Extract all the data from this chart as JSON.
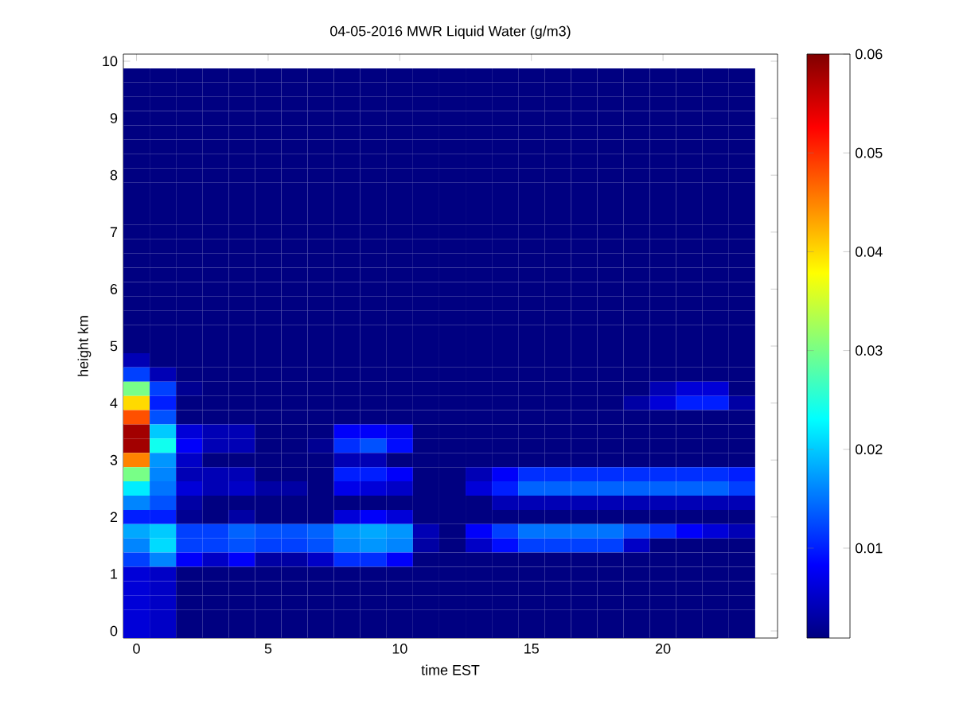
{
  "chart_data": {
    "type": "heatmap",
    "title": "04-05-2016 MWR Liquid Water (g/m3)",
    "xlabel": "time EST",
    "ylabel": "height km",
    "categories": [
      "0",
      null,
      null,
      null,
      null,
      "5",
      null,
      null,
      null,
      null,
      "10",
      null,
      null,
      null,
      null,
      "15",
      null,
      null,
      null,
      null,
      "20",
      null,
      null,
      null
    ],
    "y_categories": [
      "10",
      null,
      null,
      null,
      "9",
      null,
      null,
      null,
      "8",
      null,
      null,
      null,
      "7",
      null,
      null,
      null,
      "6",
      null,
      null,
      null,
      "5",
      null,
      null,
      null,
      "4",
      null,
      null,
      null,
      "3",
      null,
      null,
      null,
      "2",
      null,
      null,
      null,
      "1",
      null,
      null,
      null,
      "0"
    ],
    "clim": [
      0.0009,
      0.06
    ],
    "cticks": [
      0.01,
      0.02,
      0.03,
      0.04,
      0.05,
      0.06
    ],
    "cells": [
      [
        null,
        null,
        null,
        null,
        null,
        null,
        null,
        null,
        null,
        null,
        null,
        null,
        null,
        null,
        null,
        null,
        null,
        null,
        null,
        null,
        null,
        null,
        null,
        null
      ],
      [
        0.001,
        0.001,
        0.001,
        0.001,
        0.001,
        0.001,
        0.001,
        0.001,
        0.001,
        0.001,
        0.001,
        0.001,
        0.001,
        0.001,
        0.001,
        0.001,
        0.001,
        0.001,
        0.001,
        0.001,
        0.001,
        0.001,
        0.001,
        0.001
      ],
      [
        0.001,
        0.001,
        0.001,
        0.001,
        0.001,
        0.001,
        0.001,
        0.001,
        0.001,
        0.001,
        0.001,
        0.001,
        0.001,
        0.001,
        0.001,
        0.001,
        0.001,
        0.001,
        0.001,
        0.001,
        0.001,
        0.001,
        0.001,
        0.001
      ],
      [
        0.001,
        0.001,
        0.001,
        0.001,
        0.001,
        0.001,
        0.001,
        0.001,
        0.001,
        0.001,
        0.001,
        0.001,
        0.001,
        0.001,
        0.001,
        0.001,
        0.001,
        0.001,
        0.001,
        0.001,
        0.001,
        0.001,
        0.001,
        0.001
      ],
      [
        0.001,
        0.001,
        0.001,
        0.001,
        0.001,
        0.001,
        0.001,
        0.001,
        0.001,
        0.001,
        0.001,
        0.001,
        0.001,
        0.001,
        0.001,
        0.001,
        0.001,
        0.001,
        0.001,
        0.001,
        0.001,
        0.001,
        0.001,
        0.001
      ],
      [
        0.001,
        0.001,
        0.001,
        0.001,
        0.001,
        0.001,
        0.001,
        0.001,
        0.001,
        0.001,
        0.001,
        0.001,
        0.001,
        0.001,
        0.001,
        0.001,
        0.001,
        0.001,
        0.001,
        0.001,
        0.001,
        0.001,
        0.001,
        0.001
      ],
      [
        0.001,
        0.001,
        0.001,
        0.001,
        0.001,
        0.001,
        0.001,
        0.001,
        0.001,
        0.001,
        0.001,
        0.001,
        0.001,
        0.001,
        0.001,
        0.001,
        0.001,
        0.001,
        0.001,
        0.001,
        0.001,
        0.001,
        0.001,
        0.001
      ],
      [
        0.001,
        0.001,
        0.001,
        0.001,
        0.001,
        0.001,
        0.001,
        0.001,
        0.001,
        0.001,
        0.001,
        0.001,
        0.001,
        0.001,
        0.001,
        0.001,
        0.001,
        0.001,
        0.001,
        0.001,
        0.001,
        0.001,
        0.001,
        0.001
      ],
      [
        0.001,
        0.001,
        0.001,
        0.001,
        0.001,
        0.001,
        0.001,
        0.001,
        0.001,
        0.001,
        0.001,
        0.001,
        0.001,
        0.001,
        0.001,
        0.001,
        0.001,
        0.001,
        0.001,
        0.001,
        0.001,
        0.001,
        0.001,
        0.001
      ],
      [
        0.001,
        0.001,
        0.001,
        0.001,
        0.001,
        0.001,
        0.001,
        0.001,
        0.001,
        0.001,
        0.001,
        0.001,
        0.001,
        0.001,
        0.001,
        0.001,
        0.001,
        0.001,
        0.001,
        0.001,
        0.001,
        0.001,
        0.001,
        0.001
      ],
      [
        0.001,
        0.001,
        0.001,
        0.001,
        0.001,
        0.001,
        0.001,
        0.001,
        0.001,
        0.001,
        0.001,
        0.001,
        0.001,
        0.001,
        0.001,
        0.001,
        0.001,
        0.001,
        0.001,
        0.001,
        0.001,
        0.001,
        0.001,
        0.001
      ],
      [
        0.001,
        0.001,
        0.001,
        0.001,
        0.001,
        0.001,
        0.001,
        0.001,
        0.001,
        0.001,
        0.001,
        0.001,
        0.001,
        0.001,
        0.001,
        0.001,
        0.001,
        0.001,
        0.001,
        0.001,
        0.001,
        0.001,
        0.001,
        0.001
      ],
      [
        0.001,
        0.001,
        0.001,
        0.001,
        0.001,
        0.001,
        0.001,
        0.001,
        0.001,
        0.001,
        0.001,
        0.001,
        0.001,
        0.001,
        0.001,
        0.001,
        0.001,
        0.001,
        0.001,
        0.001,
        0.001,
        0.001,
        0.001,
        0.001
      ],
      [
        0.001,
        0.001,
        0.001,
        0.001,
        0.001,
        0.001,
        0.001,
        0.001,
        0.001,
        0.001,
        0.001,
        0.001,
        0.001,
        0.001,
        0.001,
        0.001,
        0.001,
        0.001,
        0.001,
        0.001,
        0.001,
        0.001,
        0.001,
        0.001
      ],
      [
        0.001,
        0.001,
        0.001,
        0.001,
        0.001,
        0.001,
        0.001,
        0.001,
        0.001,
        0.001,
        0.001,
        0.001,
        0.001,
        0.001,
        0.001,
        0.001,
        0.001,
        0.001,
        0.001,
        0.001,
        0.001,
        0.001,
        0.001,
        0.001
      ],
      [
        0.001,
        0.001,
        0.001,
        0.001,
        0.001,
        0.001,
        0.001,
        0.001,
        0.001,
        0.001,
        0.001,
        0.001,
        0.001,
        0.001,
        0.001,
        0.001,
        0.001,
        0.001,
        0.001,
        0.001,
        0.001,
        0.001,
        0.001,
        0.001
      ],
      [
        0.001,
        0.001,
        0.001,
        0.001,
        0.001,
        0.001,
        0.001,
        0.001,
        0.001,
        0.001,
        0.001,
        0.001,
        0.001,
        0.001,
        0.001,
        0.001,
        0.001,
        0.001,
        0.001,
        0.001,
        0.001,
        0.001,
        0.001,
        0.001
      ],
      [
        0.001,
        0.001,
        0.001,
        0.001,
        0.001,
        0.001,
        0.001,
        0.001,
        0.001,
        0.001,
        0.001,
        0.001,
        0.001,
        0.001,
        0.001,
        0.001,
        0.001,
        0.001,
        0.001,
        0.001,
        0.001,
        0.001,
        0.001,
        0.001
      ],
      [
        0.001,
        0.001,
        0.001,
        0.001,
        0.001,
        0.001,
        0.001,
        0.001,
        0.001,
        0.001,
        0.001,
        0.001,
        0.001,
        0.001,
        0.001,
        0.001,
        0.001,
        0.001,
        0.001,
        0.001,
        0.001,
        0.001,
        0.001,
        0.001
      ],
      [
        0.001,
        0.001,
        0.001,
        0.001,
        0.001,
        0.001,
        0.001,
        0.001,
        0.001,
        0.001,
        0.001,
        0.001,
        0.001,
        0.001,
        0.001,
        0.001,
        0.001,
        0.001,
        0.001,
        0.001,
        0.001,
        0.001,
        0.001,
        0.001
      ],
      [
        0.001,
        0.001,
        0.001,
        0.001,
        0.001,
        0.001,
        0.001,
        0.001,
        0.001,
        0.001,
        0.001,
        0.001,
        0.001,
        0.001,
        0.001,
        0.001,
        0.001,
        0.001,
        0.001,
        0.001,
        0.001,
        0.001,
        0.001,
        0.001
      ],
      [
        0.004,
        0.001,
        0.001,
        0.001,
        0.001,
        0.001,
        0.001,
        0.001,
        0.001,
        0.001,
        0.001,
        0.001,
        0.001,
        0.001,
        0.001,
        0.001,
        0.001,
        0.001,
        0.001,
        0.001,
        0.001,
        0.001,
        0.001,
        0.001
      ],
      [
        0.012,
        0.004,
        0.001,
        0.001,
        0.001,
        0.001,
        0.001,
        0.001,
        0.001,
        0.001,
        0.001,
        0.001,
        0.001,
        0.001,
        0.001,
        0.001,
        0.001,
        0.001,
        0.001,
        0.001,
        0.001,
        0.001,
        0.001,
        0.001
      ],
      [
        0.03,
        0.012,
        0.002,
        0.001,
        0.001,
        0.001,
        0.001,
        0.001,
        0.001,
        0.001,
        0.001,
        0.001,
        0.001,
        0.001,
        0.001,
        0.001,
        0.001,
        0.001,
        0.001,
        0.001,
        0.004,
        0.006,
        0.006,
        0.001
      ],
      [
        0.04,
        0.01,
        0.001,
        0.001,
        0.001,
        0.001,
        0.001,
        0.001,
        0.001,
        0.001,
        0.001,
        0.001,
        0.001,
        0.001,
        0.001,
        0.001,
        0.001,
        0.001,
        0.001,
        0.003,
        0.006,
        0.01,
        0.01,
        0.003
      ],
      [
        0.048,
        0.013,
        0.001,
        0.001,
        0.001,
        0.001,
        0.001,
        0.001,
        0.001,
        0.001,
        0.001,
        0.001,
        0.001,
        0.001,
        0.001,
        0.001,
        0.001,
        0.001,
        0.001,
        0.001,
        0.001,
        0.001,
        0.001,
        0.001
      ],
      [
        0.058,
        0.02,
        0.006,
        0.004,
        0.004,
        0.001,
        0.001,
        0.001,
        0.008,
        0.008,
        0.007,
        0.001,
        0.001,
        0.001,
        0.001,
        0.001,
        0.001,
        0.001,
        0.001,
        0.001,
        0.001,
        0.001,
        0.001,
        0.001
      ],
      [
        0.058,
        0.024,
        0.008,
        0.004,
        0.004,
        0.001,
        0.001,
        0.002,
        0.011,
        0.013,
        0.009,
        0.001,
        0.001,
        0.001,
        0.001,
        0.001,
        0.001,
        0.001,
        0.001,
        0.001,
        0.001,
        0.001,
        0.001,
        0.001
      ],
      [
        0.045,
        0.017,
        0.005,
        0.001,
        0.001,
        0.001,
        0.001,
        0.001,
        0.004,
        0.004,
        0.001,
        0.001,
        0.001,
        0.001,
        0.001,
        0.001,
        0.001,
        0.001,
        0.001,
        0.001,
        0.001,
        0.001,
        0.001,
        0.001
      ],
      [
        0.03,
        0.016,
        0.004,
        0.004,
        0.004,
        0.001,
        0.001,
        0.001,
        0.01,
        0.01,
        0.008,
        0.001,
        0.001,
        0.004,
        0.008,
        0.011,
        0.011,
        0.011,
        0.011,
        0.011,
        0.011,
        0.011,
        0.011,
        0.01
      ],
      [
        0.022,
        0.015,
        0.006,
        0.004,
        0.005,
        0.003,
        0.003,
        0.001,
        0.007,
        0.006,
        0.005,
        0.001,
        0.001,
        0.006,
        0.01,
        0.014,
        0.014,
        0.014,
        0.014,
        0.014,
        0.014,
        0.014,
        0.014,
        0.012
      ],
      [
        0.016,
        0.013,
        0.003,
        0.001,
        0.001,
        0.001,
        0.001,
        0.001,
        0.001,
        0.001,
        0.001,
        0.001,
        0.001,
        0.001,
        0.004,
        0.004,
        0.004,
        0.004,
        0.004,
        0.004,
        0.004,
        0.004,
        0.004,
        0.004
      ],
      [
        0.01,
        0.01,
        0.002,
        0.001,
        0.003,
        0.001,
        0.001,
        0.001,
        0.006,
        0.008,
        0.006,
        0.001,
        0.001,
        0.001,
        0.001,
        0.001,
        0.001,
        0.001,
        0.001,
        0.001,
        0.001,
        0.001,
        0.001,
        0.001
      ],
      [
        0.018,
        0.02,
        0.012,
        0.012,
        0.014,
        0.013,
        0.013,
        0.014,
        0.017,
        0.018,
        0.017,
        0.004,
        0.001,
        0.008,
        0.012,
        0.015,
        0.015,
        0.015,
        0.015,
        0.013,
        0.011,
        0.008,
        0.006,
        0.004
      ],
      [
        0.016,
        0.021,
        0.012,
        0.012,
        0.013,
        0.012,
        0.012,
        0.013,
        0.016,
        0.017,
        0.016,
        0.003,
        0.001,
        0.005,
        0.009,
        0.012,
        0.012,
        0.012,
        0.012,
        0.005,
        0.001,
        0.001,
        0.001,
        0.001
      ],
      [
        0.012,
        0.016,
        0.008,
        0.005,
        0.008,
        0.003,
        0.003,
        0.005,
        0.011,
        0.011,
        0.008,
        0.001,
        0.001,
        0.001,
        0.001,
        0.001,
        0.001,
        0.001,
        0.001,
        0.001,
        0.001,
        0.001,
        0.001,
        0.001
      ],
      [
        0.006,
        0.005,
        0.001,
        0.001,
        0.001,
        0.001,
        0.001,
        0.001,
        0.001,
        0.001,
        0.001,
        0.001,
        0.001,
        0.001,
        0.001,
        0.001,
        0.001,
        0.001,
        0.001,
        0.001,
        0.001,
        0.001,
        0.001,
        0.001
      ],
      [
        0.006,
        0.005,
        0.001,
        0.001,
        0.001,
        0.001,
        0.001,
        0.001,
        0.001,
        0.001,
        0.001,
        0.001,
        0.001,
        0.001,
        0.001,
        0.001,
        0.001,
        0.001,
        0.001,
        0.001,
        0.001,
        0.001,
        0.001,
        0.001
      ],
      [
        0.006,
        0.005,
        0.001,
        0.001,
        0.001,
        0.001,
        0.001,
        0.001,
        0.001,
        0.001,
        0.001,
        0.001,
        0.001,
        0.001,
        0.001,
        0.001,
        0.001,
        0.001,
        0.001,
        0.001,
        0.001,
        0.001,
        0.001,
        0.001
      ],
      [
        0.006,
        0.005,
        0.001,
        0.001,
        0.001,
        0.001,
        0.001,
        0.001,
        0.001,
        0.001,
        0.001,
        0.001,
        0.001,
        0.001,
        0.001,
        0.001,
        0.001,
        0.001,
        0.001,
        0.001,
        0.001,
        0.001,
        0.001,
        0.001
      ],
      [
        0.006,
        0.005,
        0.001,
        0.001,
        0.001,
        0.001,
        0.001,
        0.001,
        0.001,
        0.001,
        0.001,
        0.001,
        0.001,
        0.001,
        0.001,
        0.001,
        0.001,
        0.001,
        0.001,
        0.001,
        0.001,
        0.001,
        0.001,
        0.001
      ]
    ]
  }
}
